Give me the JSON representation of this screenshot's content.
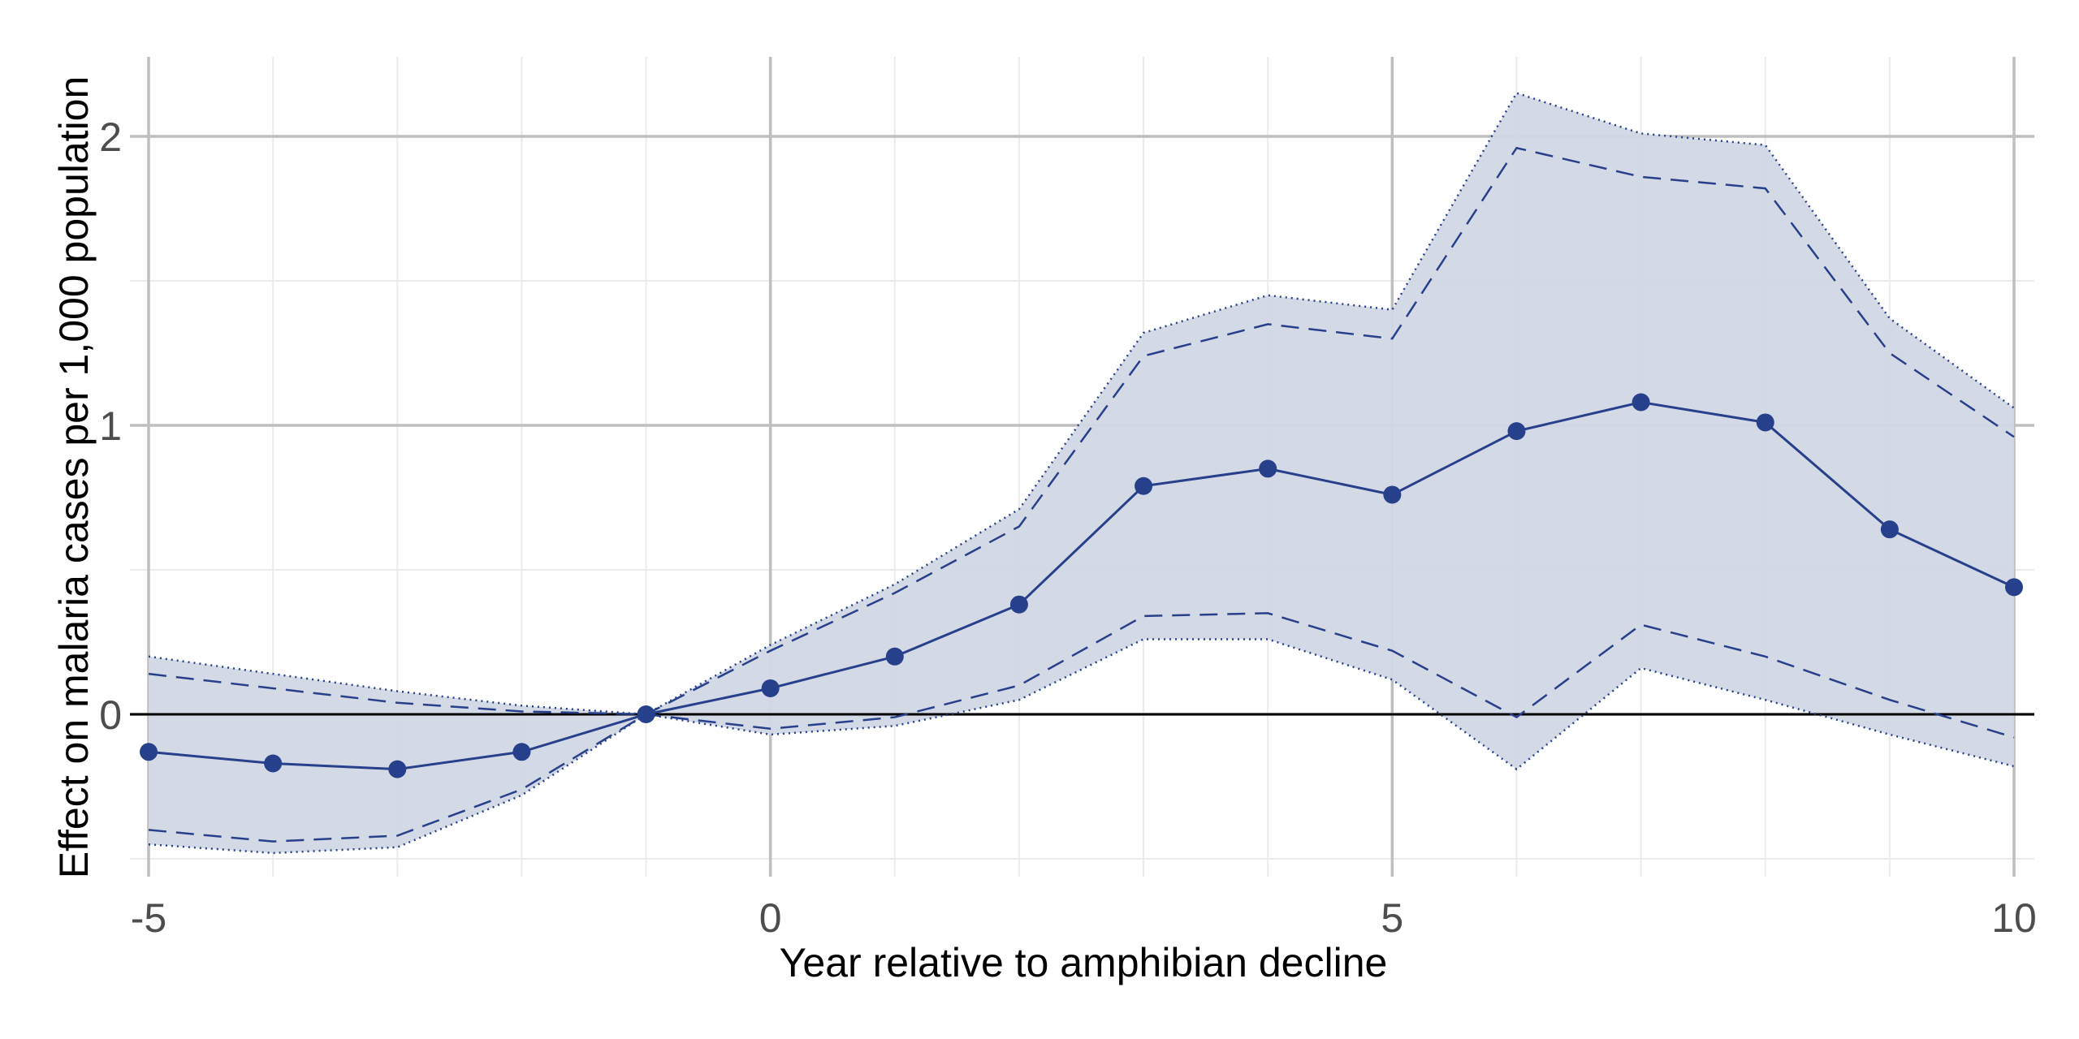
{
  "chart_data": {
    "type": "line",
    "title": "",
    "xlabel": "Year relative to amphibian decline",
    "ylabel": "Effect on malaria cases per 1,000 population",
    "x": [
      -5,
      -4,
      -3,
      -2,
      -1,
      0,
      1,
      2,
      3,
      4,
      5,
      6,
      7,
      8,
      9,
      10
    ],
    "estimate": [
      -0.13,
      -0.17,
      -0.19,
      -0.13,
      0.0,
      0.09,
      0.2,
      0.38,
      0.79,
      0.85,
      0.76,
      0.98,
      1.08,
      1.01,
      0.64,
      0.44
    ],
    "ci_inner_upper": [
      0.14,
      0.09,
      0.04,
      0.01,
      0.0,
      0.22,
      0.42,
      0.65,
      1.24,
      1.35,
      1.3,
      1.96,
      1.86,
      1.82,
      1.25,
      0.96
    ],
    "ci_inner_lower": [
      -0.4,
      -0.44,
      -0.42,
      -0.26,
      0.0,
      -0.05,
      -0.01,
      0.1,
      0.34,
      0.35,
      0.22,
      -0.01,
      0.31,
      0.2,
      0.05,
      -0.08
    ],
    "ci_outer_upper": [
      0.2,
      0.14,
      0.08,
      0.03,
      0.0,
      0.24,
      0.45,
      0.71,
      1.32,
      1.45,
      1.4,
      2.15,
      2.01,
      1.97,
      1.37,
      1.06
    ],
    "ci_outer_lower": [
      -0.45,
      -0.48,
      -0.46,
      -0.28,
      0.0,
      -0.07,
      -0.04,
      0.05,
      0.26,
      0.26,
      0.12,
      -0.19,
      0.16,
      0.05,
      -0.07,
      -0.18
    ],
    "xlim": [
      -5,
      10
    ],
    "ylim": [
      -0.5,
      2.28
    ],
    "x_major_ticks": [
      -5,
      0,
      5,
      10
    ],
    "x_tick_labels": [
      "-5",
      "0",
      "5",
      "10"
    ],
    "y_major_ticks": [
      0,
      1,
      2
    ],
    "y_tick_labels": [
      "0",
      "1",
      "2"
    ],
    "reference_line_y": 0,
    "grid": true,
    "legend": "none",
    "colors": {
      "series": "#26408b",
      "band": "#d2d7e5",
      "major_grid": "#bebebe",
      "minor_grid": "#ebebeb",
      "zero_line": "#000000"
    }
  }
}
